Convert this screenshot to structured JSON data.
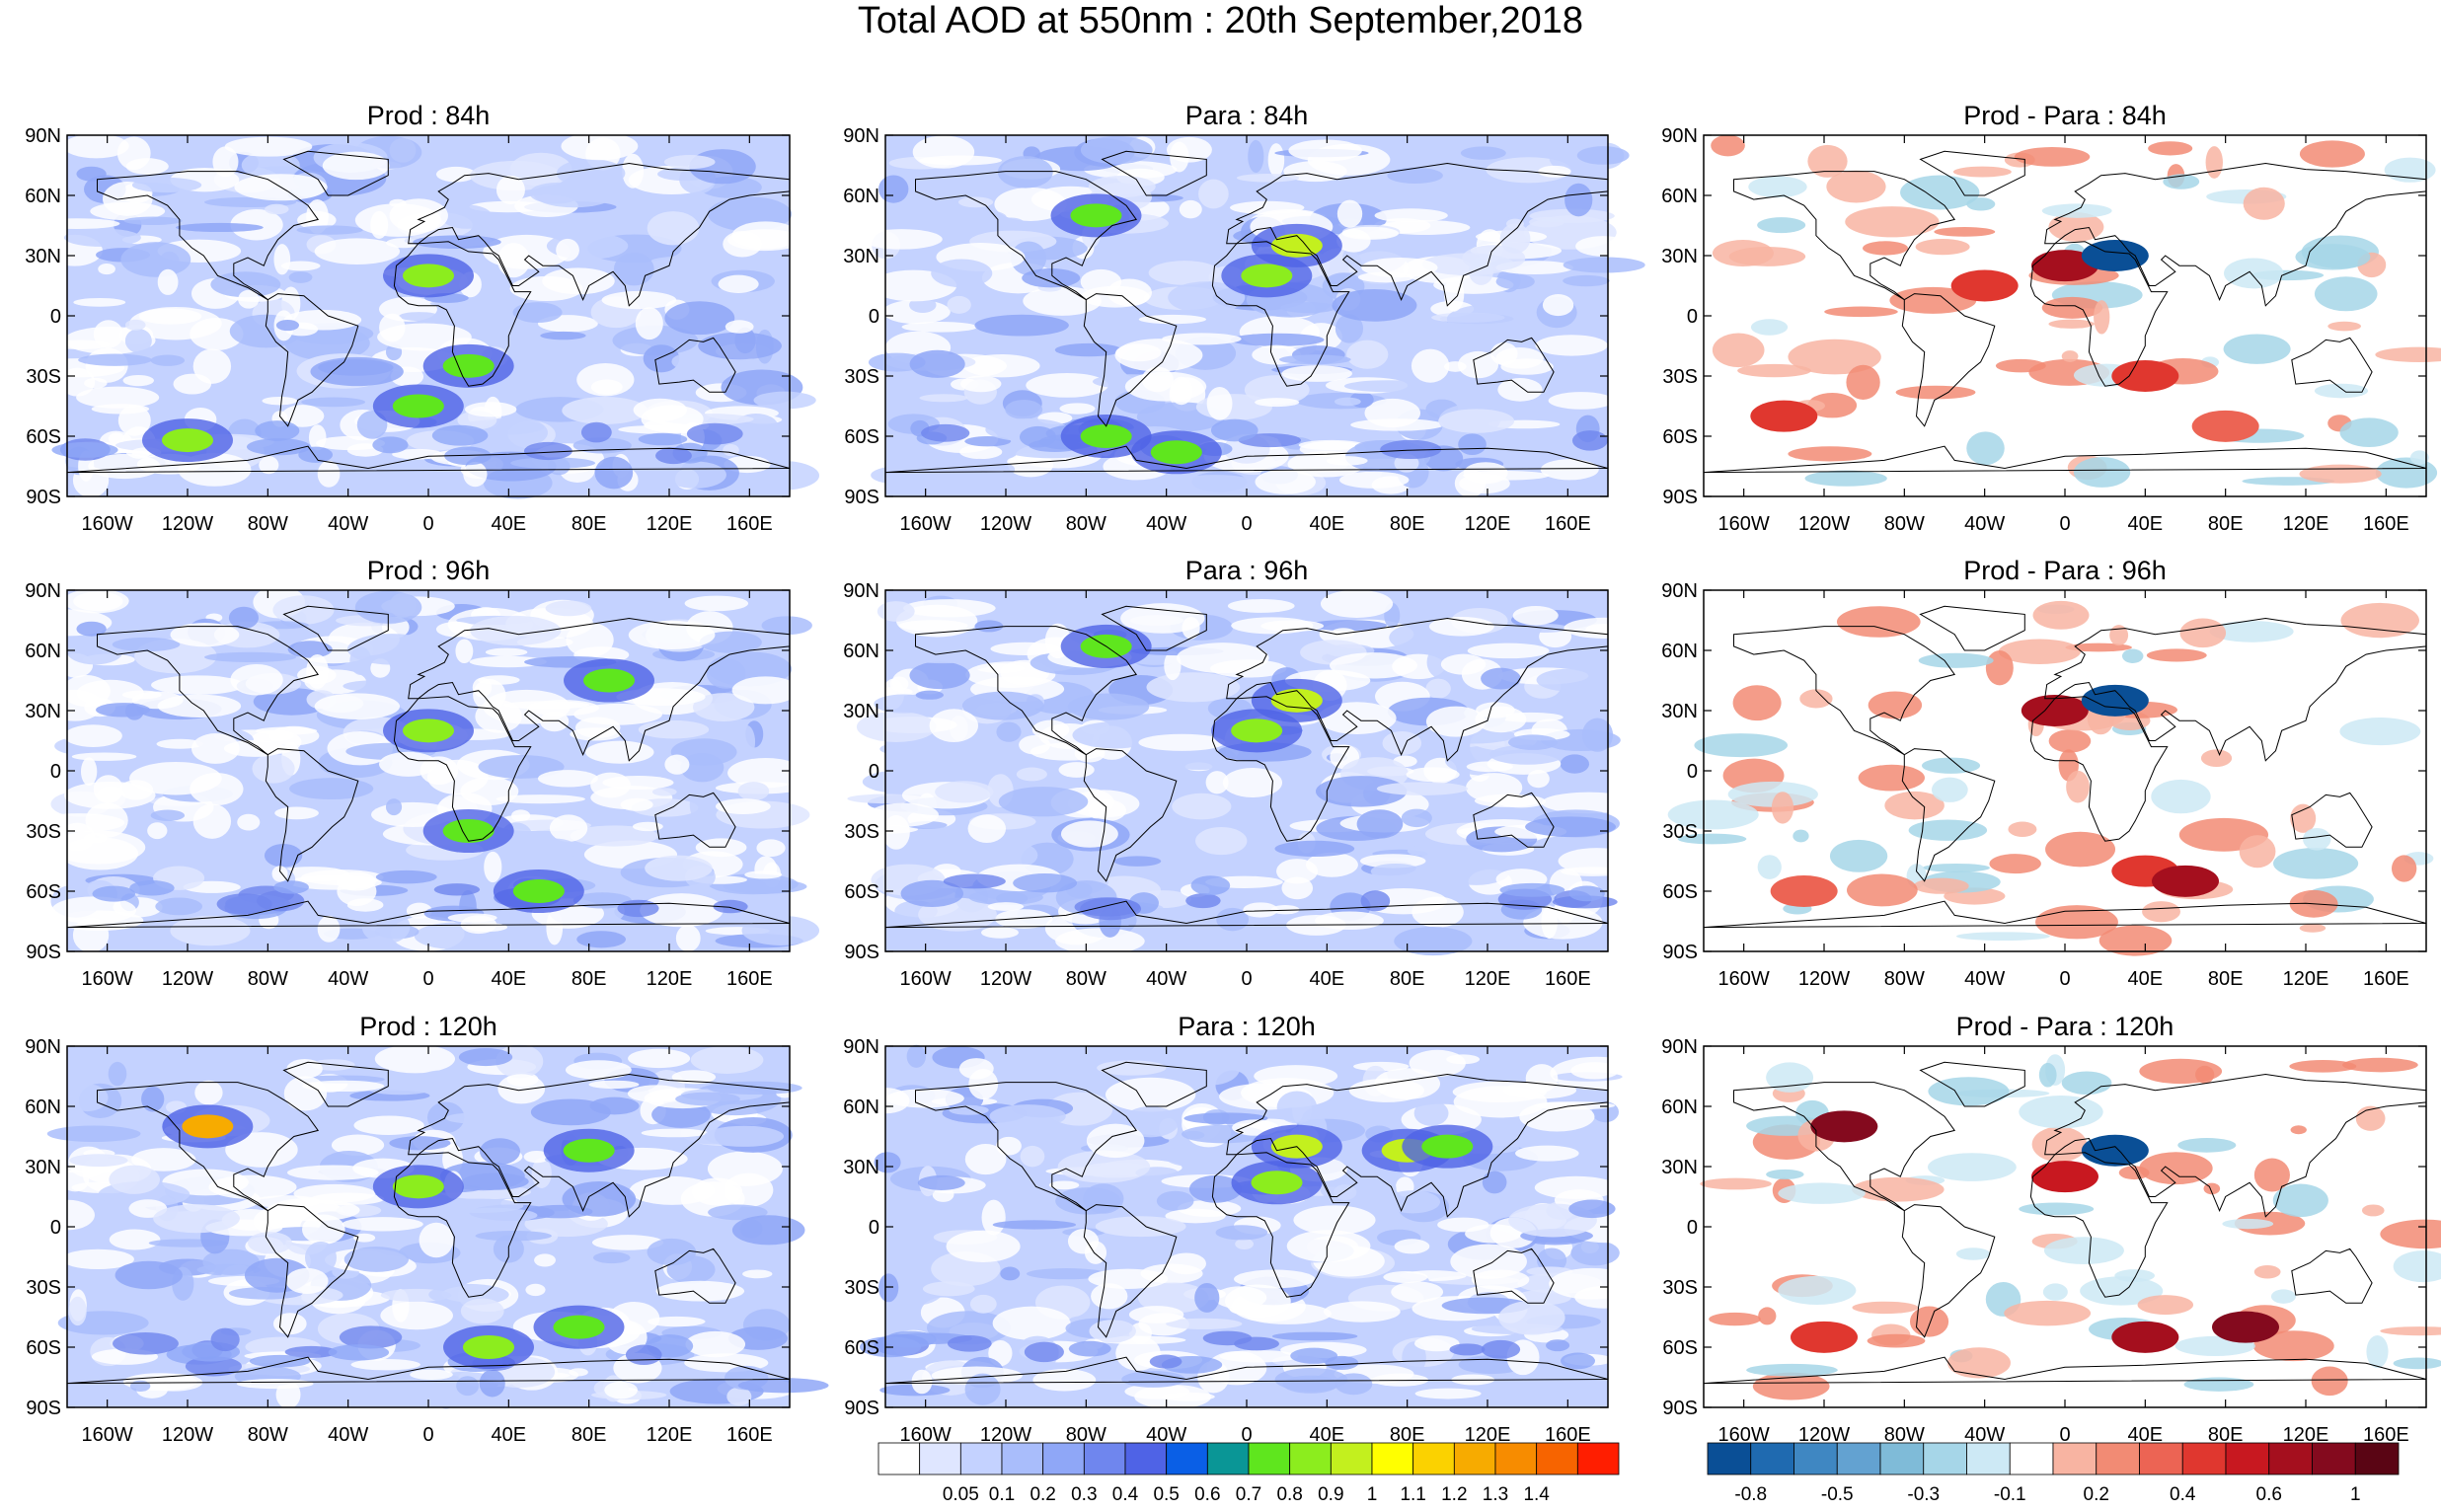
{
  "title": "Total AOD at 550nm : 20th September,2018",
  "colors": {
    "aod_levels": [
      "#ffffff",
      "#dfe6ff",
      "#c4d2ff",
      "#a9bdfb",
      "#8fa7f7",
      "#6f86ee",
      "#4f63e6",
      "#0a5fe6",
      "#0a9696",
      "#5fe61e",
      "#8ced1e",
      "#c3f01e",
      "#ffff00",
      "#fbd200",
      "#f7ab00",
      "#f78c00",
      "#f76400",
      "#ff1e00"
    ],
    "diff_levels": [
      "#0a4f96",
      "#1f6ab0",
      "#3f87c2",
      "#63a2d1",
      "#7fbbd8",
      "#a6d6e8",
      "#cde9f5",
      "#ffffff",
      "#f8b4a2",
      "#f28b74",
      "#ec6454",
      "#e0372f",
      "#c81820",
      "#a50f1e",
      "#840a1e",
      "#5a0514"
    ]
  },
  "chart_data": [
    {
      "type": "heatmap",
      "title": "Prod : 84h",
      "variable": "AOD",
      "xlabel": "",
      "ylabel": "",
      "xlim": [
        -180,
        180
      ],
      "ylim": [
        -90,
        90
      ],
      "xticks": [
        "160W",
        "120W",
        "80W",
        "40W",
        "0",
        "40E",
        "80E",
        "120E",
        "160E"
      ],
      "yticks": [
        "90N",
        "60N",
        "30N",
        "0",
        "30S",
        "60S",
        "90S"
      ],
      "hotspots": [
        {
          "lon": 0,
          "lat": 20,
          "value": 0.9
        },
        {
          "lon": 20,
          "lat": -25,
          "value": 0.8
        },
        {
          "lon": -5,
          "lat": -45,
          "value": 0.8
        },
        {
          "lon": -120,
          "lat": -62,
          "value": 0.9
        }
      ]
    },
    {
      "type": "heatmap",
      "title": "Para : 84h",
      "variable": "AOD",
      "xlabel": "",
      "ylabel": "",
      "xlim": [
        -180,
        180
      ],
      "ylim": [
        -90,
        90
      ],
      "xticks": [
        "160W",
        "120W",
        "80W",
        "40W",
        "0",
        "40E",
        "80E",
        "120E",
        "160E"
      ],
      "yticks": [
        "90N",
        "60N",
        "30N",
        "0",
        "30S",
        "60S",
        "90S"
      ],
      "hotspots": [
        {
          "lon": 10,
          "lat": 20,
          "value": 0.9
        },
        {
          "lon": 25,
          "lat": 35,
          "value": 1.0
        },
        {
          "lon": -75,
          "lat": 50,
          "value": 0.8
        },
        {
          "lon": -70,
          "lat": -60,
          "value": 0.8
        },
        {
          "lon": -35,
          "lat": -68,
          "value": 0.8
        }
      ]
    },
    {
      "type": "heatmap",
      "title": "Prod - Para : 84h",
      "variable": "AOD difference",
      "xlabel": "",
      "ylabel": "",
      "xlim": [
        -180,
        180
      ],
      "ylim": [
        -90,
        90
      ],
      "xticks": [
        "160W",
        "120W",
        "80W",
        "40W",
        "0",
        "40E",
        "80E",
        "120E",
        "160E"
      ],
      "yticks": [
        "90N",
        "60N",
        "30N",
        "0",
        "30S",
        "60S",
        "90S"
      ],
      "hotspots": [
        {
          "lon": 0,
          "lat": 25,
          "value": 0.8
        },
        {
          "lon": 25,
          "lat": 30,
          "value": -0.8
        },
        {
          "lon": -40,
          "lat": 15,
          "value": 0.5
        },
        {
          "lon": -140,
          "lat": -50,
          "value": 0.5
        },
        {
          "lon": 40,
          "lat": -30,
          "value": 0.5
        },
        {
          "lon": 80,
          "lat": -55,
          "value": 0.4
        }
      ]
    },
    {
      "type": "heatmap",
      "title": "Prod : 96h",
      "variable": "AOD",
      "xlabel": "",
      "ylabel": "",
      "xlim": [
        -180,
        180
      ],
      "ylim": [
        -90,
        90
      ],
      "xticks": [
        "160W",
        "120W",
        "80W",
        "40W",
        "0",
        "40E",
        "80E",
        "120E",
        "160E"
      ],
      "yticks": [
        "90N",
        "60N",
        "30N",
        "0",
        "30S",
        "60S",
        "90S"
      ],
      "hotspots": [
        {
          "lon": 0,
          "lat": 20,
          "value": 0.9
        },
        {
          "lon": 20,
          "lat": -30,
          "value": 0.8
        },
        {
          "lon": 55,
          "lat": -60,
          "value": 0.8
        },
        {
          "lon": 90,
          "lat": 45,
          "value": 0.8
        }
      ]
    },
    {
      "type": "heatmap",
      "title": "Para : 96h",
      "variable": "AOD",
      "xlabel": "",
      "ylabel": "",
      "xlim": [
        -180,
        180
      ],
      "ylim": [
        -90,
        90
      ],
      "xticks": [
        "160W",
        "120W",
        "80W",
        "40W",
        "0",
        "40E",
        "80E",
        "120E",
        "160E"
      ],
      "yticks": [
        "90N",
        "60N",
        "30N",
        "0",
        "30S",
        "60S",
        "90S"
      ],
      "hotspots": [
        {
          "lon": 5,
          "lat": 20,
          "value": 0.9
        },
        {
          "lon": 25,
          "lat": 35,
          "value": 1.0
        },
        {
          "lon": -70,
          "lat": 62,
          "value": 0.8
        }
      ]
    },
    {
      "type": "heatmap",
      "title": "Prod - Para : 96h",
      "variable": "AOD difference",
      "xlabel": "",
      "ylabel": "",
      "xlim": [
        -180,
        180
      ],
      "ylim": [
        -90,
        90
      ],
      "xticks": [
        "160W",
        "120W",
        "80W",
        "40W",
        "0",
        "40E",
        "80E",
        "120E",
        "160E"
      ],
      "yticks": [
        "90N",
        "60N",
        "30N",
        "0",
        "30S",
        "60S",
        "90S"
      ],
      "hotspots": [
        {
          "lon": -5,
          "lat": 30,
          "value": 0.8
        },
        {
          "lon": 25,
          "lat": 35,
          "value": -0.8
        },
        {
          "lon": 40,
          "lat": -50,
          "value": 0.5
        },
        {
          "lon": 60,
          "lat": -55,
          "value": 0.8
        },
        {
          "lon": -130,
          "lat": -60,
          "value": 0.4
        }
      ]
    },
    {
      "type": "heatmap",
      "title": "Prod : 120h",
      "variable": "AOD",
      "xlabel": "",
      "ylabel": "",
      "xlim": [
        -180,
        180
      ],
      "ylim": [
        -90,
        90
      ],
      "xticks": [
        "160W",
        "120W",
        "80W",
        "40W",
        "0",
        "40E",
        "80E",
        "120E",
        "160E"
      ],
      "yticks": [
        "90N",
        "60N",
        "30N",
        "0",
        "30S",
        "60S",
        "90S"
      ],
      "hotspots": [
        {
          "lon": -5,
          "lat": 20,
          "value": 0.9
        },
        {
          "lon": 30,
          "lat": -60,
          "value": 0.9
        },
        {
          "lon": 75,
          "lat": -50,
          "value": 0.8
        },
        {
          "lon": -110,
          "lat": 50,
          "value": 1.3
        },
        {
          "lon": 80,
          "lat": 38,
          "value": 0.8
        }
      ]
    },
    {
      "type": "heatmap",
      "title": "Para : 120h",
      "variable": "AOD",
      "xlabel": "",
      "ylabel": "",
      "xlim": [
        -180,
        180
      ],
      "ylim": [
        -90,
        90
      ],
      "xticks": [
        "160W",
        "120W",
        "80W",
        "40W",
        "0",
        "40E",
        "80E",
        "120E",
        "160E"
      ],
      "yticks": [
        "90N",
        "60N",
        "30N",
        "0",
        "30S",
        "60S",
        "90S"
      ],
      "hotspots": [
        {
          "lon": 15,
          "lat": 22,
          "value": 0.9
        },
        {
          "lon": 25,
          "lat": 40,
          "value": 1.0
        },
        {
          "lon": 80,
          "lat": 38,
          "value": 1.0
        },
        {
          "lon": 100,
          "lat": 40,
          "value": 0.8
        }
      ]
    },
    {
      "type": "heatmap",
      "title": "Prod - Para : 120h",
      "variable": "AOD difference",
      "xlabel": "",
      "ylabel": "",
      "xlim": [
        -180,
        180
      ],
      "ylim": [
        -90,
        90
      ],
      "xticks": [
        "160W",
        "120W",
        "80W",
        "40W",
        "0",
        "40E",
        "80E",
        "120E",
        "160E"
      ],
      "yticks": [
        "90N",
        "60N",
        "30N",
        "0",
        "30S",
        "60S",
        "90S"
      ],
      "hotspots": [
        {
          "lon": 0,
          "lat": 25,
          "value": 0.6
        },
        {
          "lon": 25,
          "lat": 38,
          "value": -0.8
        },
        {
          "lon": 40,
          "lat": -55,
          "value": 0.8
        },
        {
          "lon": 90,
          "lat": -50,
          "value": 1.0
        },
        {
          "lon": -120,
          "lat": -55,
          "value": 0.5
        },
        {
          "lon": -110,
          "lat": 50,
          "value": 1.0
        }
      ]
    }
  ],
  "colorbar_aod": {
    "labels": [
      "0.05",
      "0.1",
      "0.2",
      "0.3",
      "0.4",
      "0.5",
      "0.6",
      "0.7",
      "0.8",
      "0.9",
      "1",
      "1.1",
      "1.2",
      "1.3",
      "1.4"
    ]
  },
  "colorbar_diff": {
    "labels": [
      "-0.8",
      "-0.5",
      "-0.3",
      "-0.1",
      "0.2",
      "0.4",
      "0.6",
      "1"
    ]
  }
}
